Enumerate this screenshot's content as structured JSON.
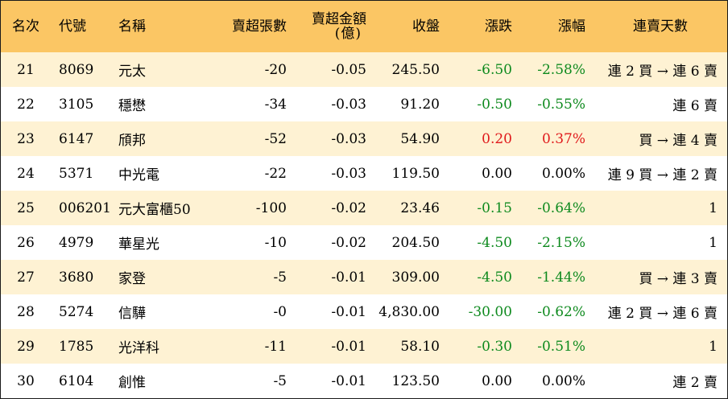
{
  "headers": {
    "rank": "名次",
    "code": "代號",
    "name": "名稱",
    "lots": "賣超張數",
    "amount_line1": "賣超金額",
    "amount_line2": "(億)",
    "close": "收盤",
    "change": "漲跌",
    "pct": "漲幅",
    "days": "連賣天數"
  },
  "colors": {
    "header_bg": "#fbc664",
    "stripe_bg": "#fef2d3",
    "up": "#e0191b",
    "down": "#0e8a1e"
  },
  "rows": [
    {
      "rank": "21",
      "code": "8069",
      "name": "元太",
      "lots": "-20",
      "amount": "-0.05",
      "close": "245.50",
      "change": "-6.50",
      "pct": "-2.58%",
      "trend": "down",
      "days": "連 2 買 → 連 6 賣"
    },
    {
      "rank": "22",
      "code": "3105",
      "name": "穩懋",
      "lots": "-34",
      "amount": "-0.03",
      "close": "91.20",
      "change": "-0.50",
      "pct": "-0.55%",
      "trend": "down",
      "days": "連 6 賣"
    },
    {
      "rank": "23",
      "code": "6147",
      "name": "頎邦",
      "lots": "-52",
      "amount": "-0.03",
      "close": "54.90",
      "change": "0.20",
      "pct": "0.37%",
      "trend": "up",
      "days": "買 → 連 4 賣"
    },
    {
      "rank": "24",
      "code": "5371",
      "name": "中光電",
      "lots": "-22",
      "amount": "-0.03",
      "close": "119.50",
      "change": "0.00",
      "pct": "0.00%",
      "trend": "flat",
      "days": "連 9 買 → 連 2 賣"
    },
    {
      "rank": "25",
      "code": "006201",
      "name": "元大富櫃50",
      "lots": "-100",
      "amount": "-0.02",
      "close": "23.46",
      "change": "-0.15",
      "pct": "-0.64%",
      "trend": "down",
      "days": "1"
    },
    {
      "rank": "26",
      "code": "4979",
      "name": "華星光",
      "lots": "-10",
      "amount": "-0.02",
      "close": "204.50",
      "change": "-4.50",
      "pct": "-2.15%",
      "trend": "down",
      "days": "1"
    },
    {
      "rank": "27",
      "code": "3680",
      "name": "家登",
      "lots": "-5",
      "amount": "-0.01",
      "close": "309.00",
      "change": "-4.50",
      "pct": "-1.44%",
      "trend": "down",
      "days": "買 → 連 3 賣"
    },
    {
      "rank": "28",
      "code": "5274",
      "name": "信驊",
      "lots": "-0",
      "amount": "-0.01",
      "close": "4,830.00",
      "change": "-30.00",
      "pct": "-0.62%",
      "trend": "down",
      "days": "連 2 買 → 連 6 賣"
    },
    {
      "rank": "29",
      "code": "1785",
      "name": "光洋科",
      "lots": "-11",
      "amount": "-0.01",
      "close": "58.10",
      "change": "-0.30",
      "pct": "-0.51%",
      "trend": "down",
      "days": "1"
    },
    {
      "rank": "30",
      "code": "6104",
      "name": "創惟",
      "lots": "-5",
      "amount": "-0.01",
      "close": "123.50",
      "change": "0.00",
      "pct": "0.00%",
      "trend": "flat",
      "days": "連 2 賣"
    }
  ]
}
